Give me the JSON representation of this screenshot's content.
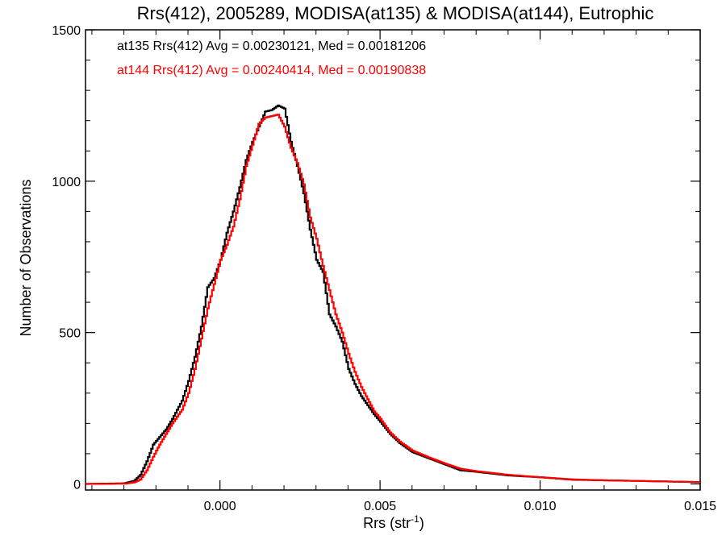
{
  "chart_data": {
    "type": "line",
    "title": "Rrs(412), 2005289, MODISA(at135) & MODISA(at144), Eutrophic",
    "xlabel_main": "Rrs (str",
    "xlabel_sup": "-1",
    "xlabel_close": ")",
    "ylabel": "Number of Observations",
    "xlim": [
      -0.0042,
      0.015
    ],
    "ylim": [
      -20,
      1500
    ],
    "x_ticks": [
      0.0,
      0.005,
      0.01,
      0.015
    ],
    "x_tick_labels": [
      "0.000",
      "0.005",
      "0.010",
      "0.015"
    ],
    "y_ticks": [
      0,
      500,
      1000,
      1500
    ],
    "y_tick_labels": [
      "0",
      "500",
      "1000",
      "1500"
    ],
    "grid": false,
    "legend_position": "top-left",
    "annotations": [
      "at135 Rrs(412) Avg = 0.00230121, Med = 0.00181206",
      "at144 Rrs(412) Avg = 0.00240414, Med = 0.00190838"
    ],
    "series": [
      {
        "name": "at135",
        "color": "#000000",
        "points": [
          [
            -0.0042,
            0
          ],
          [
            -0.003,
            2
          ],
          [
            -0.0027,
            10
          ],
          [
            -0.0025,
            30
          ],
          [
            -0.0023,
            75
          ],
          [
            -0.0021,
            130
          ],
          [
            -0.0019,
            155
          ],
          [
            -0.0017,
            180
          ],
          [
            -0.0015,
            215
          ],
          [
            -0.0012,
            275
          ],
          [
            -0.001,
            340
          ],
          [
            -0.0008,
            420
          ],
          [
            -0.0006,
            520
          ],
          [
            -0.0004,
            650
          ],
          [
            -0.0002,
            680
          ],
          [
            0.0,
            740
          ],
          [
            0.0002,
            830
          ],
          [
            0.0004,
            900
          ],
          [
            0.0006,
            980
          ],
          [
            0.0008,
            1070
          ],
          [
            0.001,
            1130
          ],
          [
            0.0012,
            1180
          ],
          [
            0.0014,
            1230
          ],
          [
            0.0016,
            1235
          ],
          [
            0.0018,
            1250
          ],
          [
            0.002,
            1240
          ],
          [
            0.0022,
            1130
          ],
          [
            0.0024,
            1050
          ],
          [
            0.0026,
            960
          ],
          [
            0.0028,
            840
          ],
          [
            0.003,
            740
          ],
          [
            0.0032,
            700
          ],
          [
            0.0034,
            560
          ],
          [
            0.0036,
            520
          ],
          [
            0.0038,
            470
          ],
          [
            0.004,
            380
          ],
          [
            0.0042,
            330
          ],
          [
            0.0044,
            290
          ],
          [
            0.0046,
            260
          ],
          [
            0.0048,
            230
          ],
          [
            0.005,
            205
          ],
          [
            0.0053,
            165
          ],
          [
            0.0056,
            135
          ],
          [
            0.006,
            105
          ],
          [
            0.0065,
            85
          ],
          [
            0.007,
            65
          ],
          [
            0.0075,
            45
          ],
          [
            0.008,
            40
          ],
          [
            0.009,
            28
          ],
          [
            0.01,
            22
          ],
          [
            0.011,
            14
          ],
          [
            0.012,
            12
          ],
          [
            0.013,
            10
          ],
          [
            0.014,
            8
          ],
          [
            0.015,
            6
          ]
        ]
      },
      {
        "name": "at144",
        "color": "#ff0000",
        "points": [
          [
            -0.0042,
            0
          ],
          [
            -0.003,
            1
          ],
          [
            -0.0027,
            5
          ],
          [
            -0.0025,
            15
          ],
          [
            -0.0023,
            45
          ],
          [
            -0.0021,
            90
          ],
          [
            -0.0019,
            130
          ],
          [
            -0.0017,
            165
          ],
          [
            -0.0015,
            200
          ],
          [
            -0.0012,
            245
          ],
          [
            -0.001,
            300
          ],
          [
            -0.0008,
            380
          ],
          [
            -0.0006,
            480
          ],
          [
            -0.0004,
            580
          ],
          [
            -0.0002,
            660
          ],
          [
            0.0,
            740
          ],
          [
            0.0002,
            790
          ],
          [
            0.0004,
            850
          ],
          [
            0.0006,
            940
          ],
          [
            0.0008,
            1050
          ],
          [
            0.001,
            1120
          ],
          [
            0.0012,
            1190
          ],
          [
            0.0014,
            1210
          ],
          [
            0.0016,
            1215
          ],
          [
            0.0018,
            1220
          ],
          [
            0.002,
            1180
          ],
          [
            0.0022,
            1110
          ],
          [
            0.0024,
            1060
          ],
          [
            0.0026,
            990
          ],
          [
            0.0028,
            880
          ],
          [
            0.003,
            810
          ],
          [
            0.0032,
            720
          ],
          [
            0.0034,
            640
          ],
          [
            0.0036,
            560
          ],
          [
            0.0038,
            500
          ],
          [
            0.004,
            430
          ],
          [
            0.0042,
            370
          ],
          [
            0.0044,
            320
          ],
          [
            0.0046,
            280
          ],
          [
            0.0048,
            240
          ],
          [
            0.005,
            215
          ],
          [
            0.0053,
            170
          ],
          [
            0.0056,
            140
          ],
          [
            0.006,
            110
          ],
          [
            0.0065,
            88
          ],
          [
            0.007,
            68
          ],
          [
            0.0075,
            50
          ],
          [
            0.008,
            42
          ],
          [
            0.009,
            30
          ],
          [
            0.01,
            22
          ],
          [
            0.011,
            15
          ],
          [
            0.012,
            12
          ],
          [
            0.013,
            10
          ],
          [
            0.014,
            8
          ],
          [
            0.015,
            6
          ]
        ]
      }
    ]
  }
}
